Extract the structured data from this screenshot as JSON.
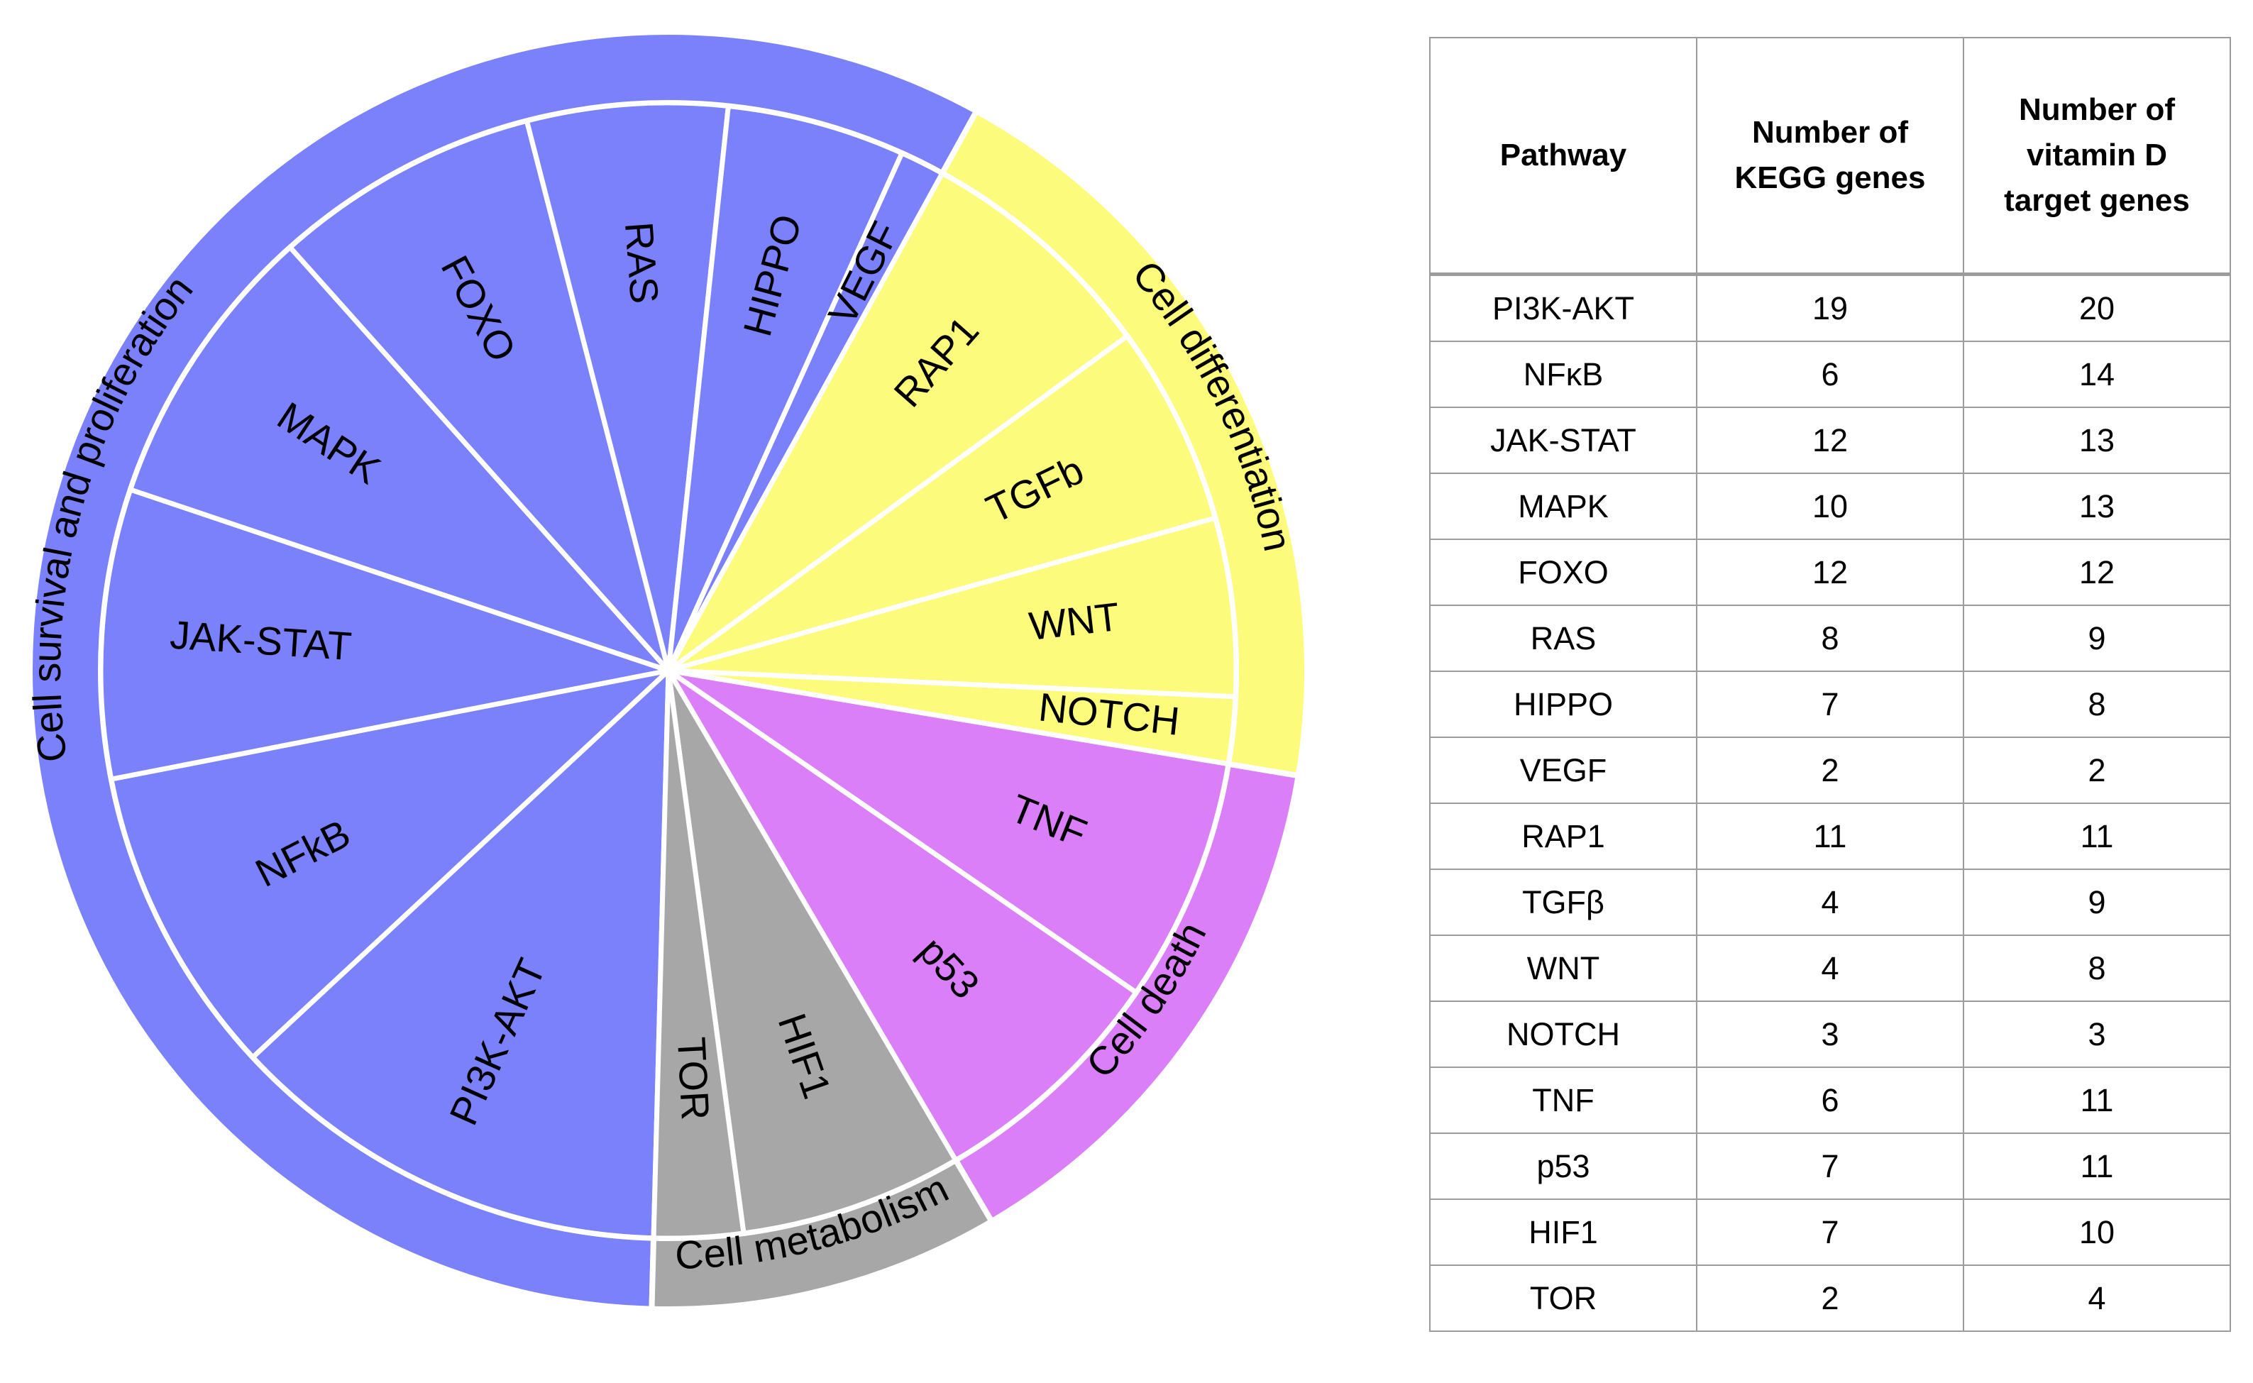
{
  "colors": {
    "Cell survival and proliferation": "#7b80fb",
    "Cell differentiation": "#fcfb7b",
    "Cell death": "#da7ff8",
    "Cell metabolism": "#a7a7a7",
    "separator": "#ffffff",
    "table_border": "#9c9c9c"
  },
  "chart_data": [
    {
      "type": "pie",
      "categories": [
        {
          "name": "Cell survival and proliferation",
          "slices": [
            "PI3K-AKT",
            "NFkB",
            "JAK-STAT",
            "MAPK",
            "FOXO",
            "RAS",
            "HIPPO",
            "VEGF"
          ]
        },
        {
          "name": "Cell differentiation",
          "slices": [
            "RAP1",
            "TGFb",
            "WNT",
            "NOTCH"
          ]
        },
        {
          "name": "Cell death",
          "slices": [
            "TNF",
            "p53"
          ]
        },
        {
          "name": "Cell metabolism",
          "slices": [
            "HIF1",
            "TOR"
          ]
        }
      ],
      "labels": [
        "PI3K-AKT",
        "NFkB",
        "JAK-STAT",
        "MAPK",
        "FOXO",
        "RAS",
        "HIPPO",
        "VEGF",
        "RAP1",
        "TGFb",
        "WNT",
        "NOTCH",
        "TNF",
        "p53",
        "HIF1",
        "TOR"
      ],
      "values": [
        20,
        14,
        13,
        13,
        12,
        9,
        8,
        2,
        11,
        9,
        8,
        3,
        11,
        11,
        10,
        4
      ]
    },
    {
      "type": "table",
      "columns": [
        "Pathway",
        "Number of KEGG genes",
        "Number of vitamin D target genes"
      ],
      "header_lines": [
        [
          "Pathway"
        ],
        [
          "Number of",
          "KEGG genes"
        ],
        [
          "Number of",
          "vitamin D",
          "target genes"
        ]
      ],
      "rows": [
        [
          "PI3K-AKT",
          "19",
          "20"
        ],
        [
          "NFκB",
          "6",
          "14"
        ],
        [
          "JAK-STAT",
          "12",
          "13"
        ],
        [
          "MAPK",
          "10",
          "13"
        ],
        [
          "FOXO",
          "12",
          "12"
        ],
        [
          "RAS",
          "8",
          "9"
        ],
        [
          "HIPPO",
          "7",
          "8"
        ],
        [
          "VEGF",
          "2",
          "2"
        ],
        [
          "RAP1",
          "11",
          "11"
        ],
        [
          "TGFβ",
          "4",
          "9"
        ],
        [
          "WNT",
          "4",
          "8"
        ],
        [
          "NOTCH",
          "3",
          "3"
        ],
        [
          "TNF",
          "6",
          "11"
        ],
        [
          "p53",
          "7",
          "11"
        ],
        [
          "HIF1",
          "7",
          "10"
        ],
        [
          "TOR",
          "2",
          "4"
        ]
      ]
    }
  ]
}
